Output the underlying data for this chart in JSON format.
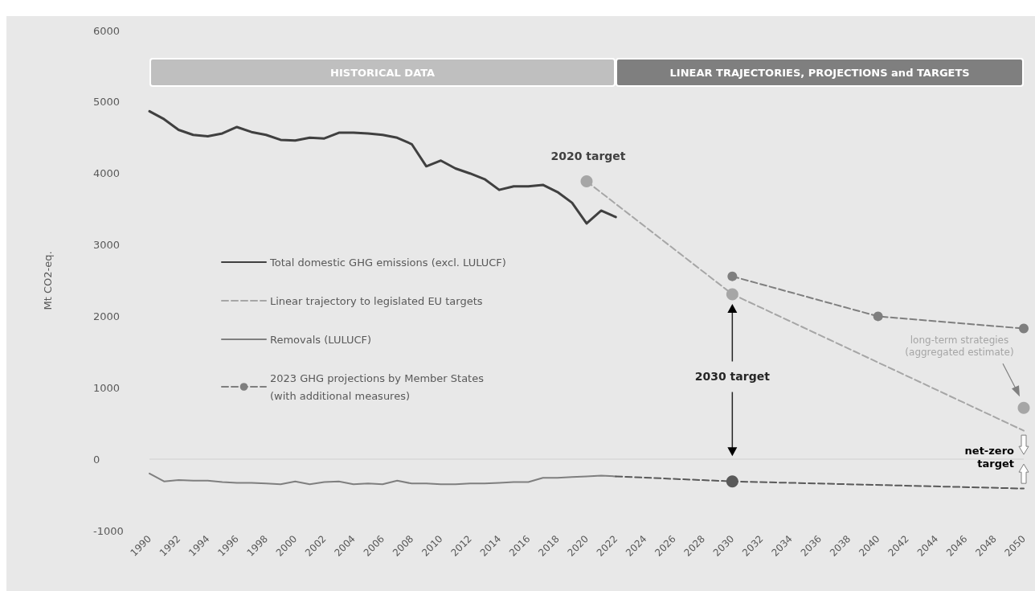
{
  "chart_data": {
    "type": "line",
    "ylabel": "Mt CO2-eq.",
    "xlim": [
      1990,
      2050
    ],
    "xticks": [
      1990,
      1992,
      1994,
      1996,
      1998,
      2000,
      2002,
      2004,
      2006,
      2008,
      2010,
      2012,
      2014,
      2016,
      2018,
      2020,
      2022,
      2024,
      2026,
      2028,
      2030,
      2032,
      2034,
      2036,
      2038,
      2040,
      2042,
      2044,
      2046,
      2048,
      2050
    ],
    "ylim": [
      -1000,
      6000
    ],
    "yticks": [
      -1000,
      0,
      1000,
      2000,
      3000,
      4000,
      5000,
      6000
    ],
    "grid": false,
    "legend": "left",
    "series": [
      {
        "name": "Total domestic GHG emissions (excl. LULUCF)",
        "color": "#404040",
        "marker": "none",
        "line_style": "solid",
        "x": [
          1990,
          1991,
          1992,
          1993,
          1994,
          1995,
          1996,
          1997,
          1998,
          1999,
          2000,
          2001,
          2002,
          2003,
          2004,
          2005,
          2006,
          2007,
          2008,
          2009,
          2010,
          2011,
          2012,
          2013,
          2014,
          2015,
          2016,
          2017,
          2018,
          2019,
          2020,
          2021,
          2022
        ],
        "values": [
          4870,
          4760,
          4610,
          4540,
          4520,
          4560,
          4650,
          4580,
          4540,
          4470,
          4460,
          4500,
          4490,
          4570,
          4570,
          4560,
          4540,
          4500,
          4410,
          4100,
          4180,
          4070,
          4000,
          3920,
          3770,
          3820,
          3820,
          3840,
          3740,
          3590,
          3300,
          3480,
          3390
        ]
      },
      {
        "name": "Linear trajectory to legislated EU targets",
        "color": "#a6a6a6",
        "marker": "none",
        "line_style": "dashed",
        "x": [
          2020,
          2030,
          2050
        ],
        "values": [
          3890,
          2310,
          400
        ]
      },
      {
        "name": "Removals (LULUCF)",
        "color": "#7f7f7f",
        "marker": "none",
        "line_style": "solid",
        "x": [
          1990,
          1991,
          1992,
          1993,
          1994,
          1995,
          1996,
          1997,
          1998,
          1999,
          2000,
          2001,
          2002,
          2003,
          2004,
          2005,
          2006,
          2007,
          2008,
          2009,
          2010,
          2011,
          2012,
          2013,
          2014,
          2015,
          2016,
          2017,
          2018,
          2019,
          2020,
          2021,
          2022
        ],
        "values": [
          -200,
          -310,
          -290,
          -300,
          -300,
          -320,
          -330,
          -330,
          -340,
          -350,
          -310,
          -350,
          -320,
          -310,
          -350,
          -340,
          -350,
          -300,
          -340,
          -340,
          -350,
          -350,
          -340,
          -340,
          -330,
          -320,
          -320,
          -260,
          -260,
          -250,
          -240,
          -230,
          -240
        ]
      },
      {
        "name": "2023 GHG projections by Member States\n(with additional measures)",
        "color": "#7f7f7f",
        "marker": "circle",
        "line_style": "dashed",
        "x": [
          2030,
          2040,
          2050
        ],
        "values": [
          2560,
          2000,
          1830
        ]
      },
      {
        "color": "#595959",
        "marker": "none",
        "line_style": "dashed",
        "x": [
          2022,
          2030,
          2050
        ],
        "values": [
          -240,
          -310,
          -410
        ]
      },
      {
        "type": "scatter",
        "color": "#595959",
        "marker": "circle",
        "x": [
          2030
        ],
        "values": [
          -310
        ]
      },
      {
        "type": "scatter",
        "color": "#a6a6a6",
        "marker": "circle",
        "x": [
          2020,
          2030,
          2050
        ],
        "values": [
          3890,
          2310,
          720
        ]
      }
    ],
    "bands": [
      {
        "axis": "x",
        "from": 1990,
        "to": 2022,
        "label": "HISTORICAL DATA",
        "color": "#bfbfbf"
      },
      {
        "axis": "x",
        "from": 2022,
        "to": 2050,
        "label": "LINEAR TRAJECTORIES, PROJECTIONS and TARGETS",
        "color": "#7f7f7f"
      }
    ],
    "ref_lines": [
      {
        "axis": "y",
        "value": 0,
        "color": "#d9d9d9"
      }
    ],
    "annotations": [
      {
        "text": "2020 target",
        "x": 2020,
        "y": 3890
      },
      "2030 target",
      "long-term strategies\n(aggregated estimate)",
      {
        "text": "net-zero\ntarget",
        "x": 2050,
        "y": 0
      }
    ]
  }
}
